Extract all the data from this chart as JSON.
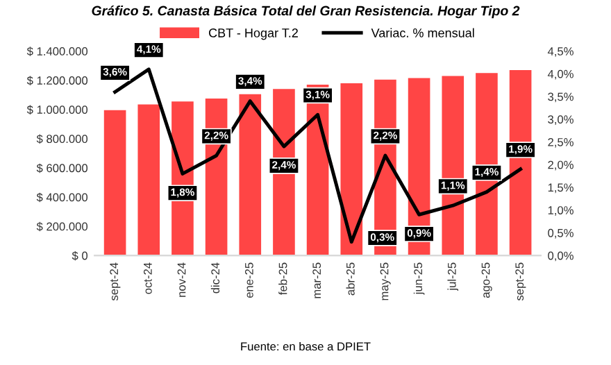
{
  "chart_data": {
    "type": "bar",
    "title": "Gráfico 5. Canasta Básica Total del Gran Resistencia. Hogar Tipo 2",
    "categories": [
      "sept-24",
      "oct-24",
      "nov-24",
      "dic-24",
      "ene-25",
      "feb-25",
      "mar-25",
      "abr-25",
      "may-25",
      "jun-25",
      "jul-25",
      "ago-25",
      "sept-25"
    ],
    "series": [
      {
        "name": "CBT - Hogar T.2",
        "color": "#ff4545",
        "values": [
          995000,
          1035000,
          1055000,
          1075000,
          1105000,
          1140000,
          1170000,
          1180000,
          1205000,
          1215000,
          1230000,
          1250000,
          1270000
        ]
      },
      {
        "name": "Variac. % mensual",
        "type": "line",
        "axis": "y2",
        "color": "#000000",
        "values": [
          3.6,
          4.1,
          1.8,
          2.2,
          3.4,
          2.4,
          3.1,
          0.3,
          2.2,
          0.9,
          1.1,
          1.4,
          1.9
        ],
        "value_labels": [
          "3,6%",
          "4,1%",
          "1,8%",
          "2,2%",
          "3,4%",
          "2,4%",
          "3,1%",
          "0,3%",
          "2,2%",
          "0,9%",
          "1,1%",
          "1,4%",
          "1,9%"
        ]
      }
    ],
    "ylim": [
      0,
      1400000
    ],
    "yticks": [
      {
        "value": 0,
        "label": "$ 0"
      },
      {
        "value": 200000,
        "label": "$ 200.000"
      },
      {
        "value": 400000,
        "label": "$ 400.000"
      },
      {
        "value": 600000,
        "label": "$ 600.000"
      },
      {
        "value": 800000,
        "label": "$ 800.000"
      },
      {
        "value": 1000000,
        "label": "$ 1.000.000"
      },
      {
        "value": 1200000,
        "label": "$ 1.200.000"
      },
      {
        "value": 1400000,
        "label": "$ 1.400.000"
      }
    ],
    "y2lim": [
      0,
      4.5
    ],
    "y2ticks": [
      {
        "value": 0,
        "label": "0,0%"
      },
      {
        "value": 0.5,
        "label": "0,5%"
      },
      {
        "value": 1,
        "label": "1,0%"
      },
      {
        "value": 1.5,
        "label": "1,5%"
      },
      {
        "value": 2,
        "label": "2,0%"
      },
      {
        "value": 2.5,
        "label": "2,5%"
      },
      {
        "value": 3,
        "label": "3,0%"
      },
      {
        "value": 3.5,
        "label": "3,5%"
      },
      {
        "value": 4,
        "label": "4,0%"
      },
      {
        "value": 4.5,
        "label": "4,5%"
      }
    ],
    "legend": "top",
    "grid": false,
    "marker": "none",
    "line_style": "solid",
    "annotations": [
      "Fuente: en base a DPIET"
    ]
  }
}
